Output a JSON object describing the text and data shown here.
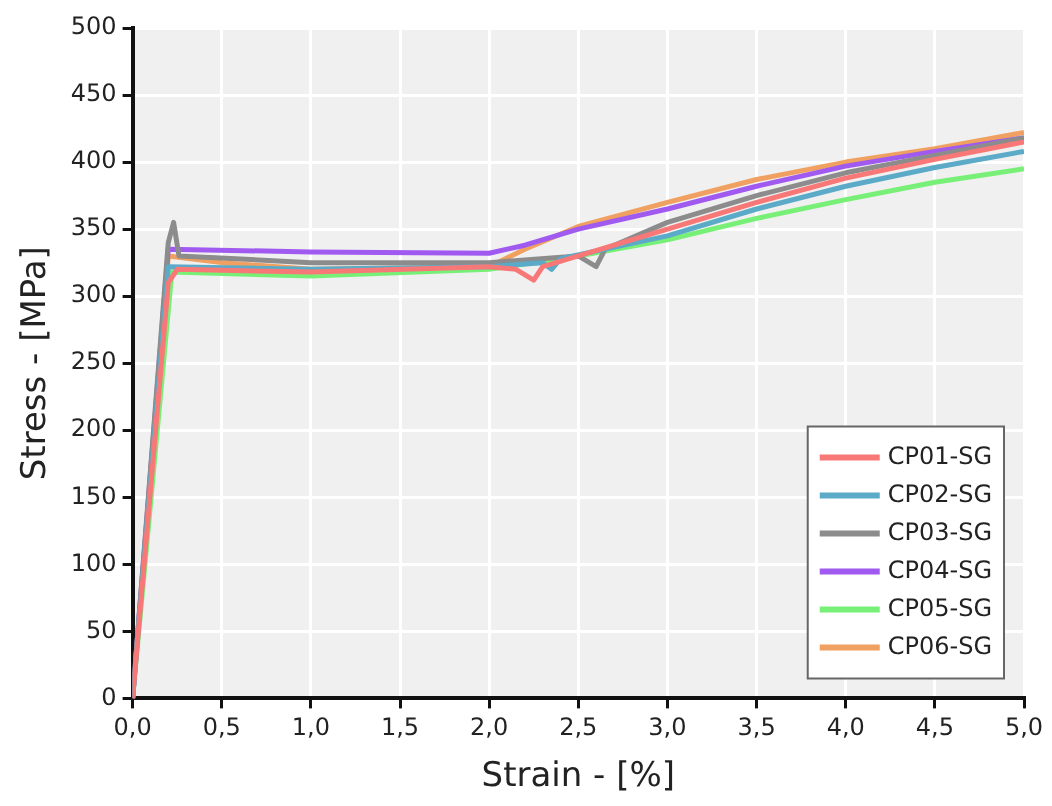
{
  "chart_data": {
    "type": "line",
    "xlabel": "Strain - [%]",
    "ylabel": "Stress - [MPa]",
    "xlim": [
      0,
      5
    ],
    "ylim": [
      0,
      500
    ],
    "xticks": [
      {
        "value": 0,
        "label": "0,0"
      },
      {
        "value": 0.5,
        "label": "0,5"
      },
      {
        "value": 1,
        "label": "1,0"
      },
      {
        "value": 1.5,
        "label": "1,5"
      },
      {
        "value": 2,
        "label": "2,0"
      },
      {
        "value": 2.5,
        "label": "2,5"
      },
      {
        "value": 3,
        "label": "3,0"
      },
      {
        "value": 3.5,
        "label": "3,5"
      },
      {
        "value": 4,
        "label": "4,0"
      },
      {
        "value": 4.5,
        "label": "4,5"
      },
      {
        "value": 5,
        "label": "5,0"
      }
    ],
    "yticks": [
      0,
      50,
      100,
      150,
      200,
      250,
      300,
      350,
      400,
      450,
      500
    ],
    "grid": true,
    "legend": "bottom right",
    "marker": "none",
    "line_style": "solid",
    "series": [
      {
        "name": "CP01-SG",
        "color": "#f87878",
        "x": [
          0,
          0.2,
          0.25,
          1,
          2,
          2.15,
          2.25,
          2.3,
          2.5,
          3,
          3.5,
          4,
          4.5,
          5
        ],
        "values": [
          0,
          310,
          320,
          318,
          322,
          320,
          312,
          322,
          330,
          350,
          370,
          388,
          402,
          415
        ]
      },
      {
        "name": "CP02-SG",
        "color": "#5aaac8",
        "x": [
          0,
          0.2,
          1,
          2,
          2.3,
          2.35,
          2.4,
          3,
          3.5,
          4,
          4.5,
          5
        ],
        "values": [
          0,
          322,
          320,
          322,
          325,
          320,
          328,
          345,
          365,
          382,
          396,
          408
        ]
      },
      {
        "name": "CP03-SG",
        "color": "#8c8c8c",
        "x": [
          0,
          0.2,
          0.23,
          0.26,
          1,
          2,
          2.5,
          2.6,
          2.65,
          3,
          3.5,
          4,
          4.5,
          5
        ],
        "values": [
          0,
          340,
          355,
          330,
          325,
          325,
          330,
          322,
          335,
          355,
          375,
          392,
          405,
          418
        ]
      },
      {
        "name": "CP04-SG",
        "color": "#a05af0",
        "x": [
          0,
          0.2,
          1,
          2,
          2.2,
          2.5,
          3,
          3.5,
          4,
          4.5,
          5
        ],
        "values": [
          0,
          335,
          333,
          332,
          338,
          350,
          365,
          382,
          397,
          408,
          418
        ]
      },
      {
        "name": "CP05-SG",
        "color": "#78f078",
        "x": [
          0,
          0.22,
          1,
          2,
          2.5,
          3,
          3.5,
          4,
          4.5,
          5
        ],
        "values": [
          0,
          318,
          315,
          320,
          330,
          342,
          358,
          372,
          385,
          395
        ]
      },
      {
        "name": "CP06-SG",
        "color": "#f0a060",
        "x": [
          0,
          0.2,
          0.5,
          1,
          2,
          2.2,
          2.5,
          3,
          3.5,
          4,
          4.5,
          5
        ],
        "values": [
          0,
          330,
          325,
          320,
          322,
          335,
          352,
          370,
          387,
          400,
          410,
          422
        ]
      }
    ]
  }
}
